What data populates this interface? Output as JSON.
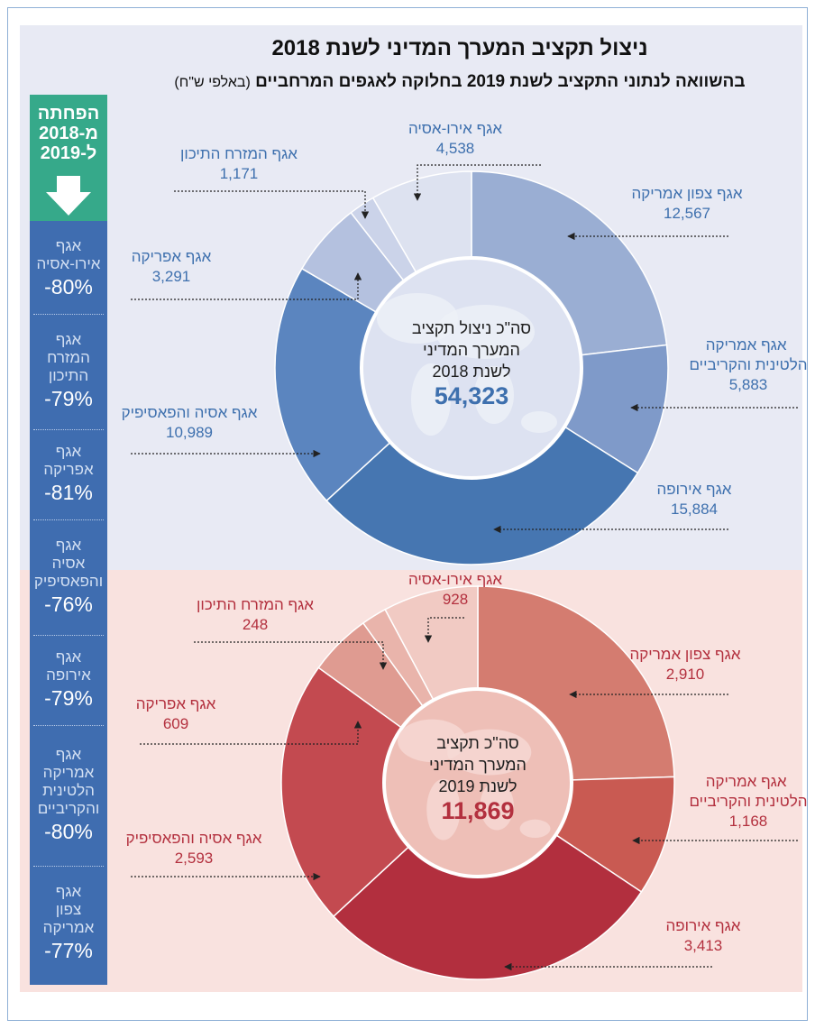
{
  "header": {
    "title": "ניצול תקציב המערך המדיני לשנת 2018",
    "subtitle": "בהשוואה לנתוני התקציב לשנת 2019 בחלוקה לאגפים המרחביים",
    "subtitle_note": "(באלפי ש\"ח)"
  },
  "sidebar": {
    "title": [
      "הפחתה",
      "מ-2018",
      "ל-2019"
    ],
    "items": [
      {
        "name": [
          "אגף",
          "אירו-אסיה"
        ],
        "change": "-80%"
      },
      {
        "name": [
          "אגף",
          "המזרח",
          "התיכון"
        ],
        "change": "-79%"
      },
      {
        "name": [
          "אגף",
          "אפריקה"
        ],
        "change": "-81%"
      },
      {
        "name": [
          "אגף",
          "אסיה",
          "והפאסיפיק"
        ],
        "change": "-76%"
      },
      {
        "name": [
          "אגף",
          "אירופה"
        ],
        "change": "-79%"
      },
      {
        "name": [
          "אגף",
          "אמריקה",
          "הלטינית",
          "והקריביים"
        ],
        "change": "-80%"
      },
      {
        "name": [
          "אגף",
          "צפון",
          "אמריקה"
        ],
        "change": "-77%"
      }
    ]
  },
  "chart_data": [
    {
      "type": "pie",
      "categories": [
        "אגף צפון אמריקה",
        "אגף אמריקה הלטינית והקריביים",
        "אגף אירופה",
        "אגף אסיה והפאסיפיק",
        "אגף אפריקה",
        "אגף המזרח התיכון",
        "אגף אירו-אסיה"
      ],
      "values": [
        12567,
        5883,
        15884,
        10989,
        3291,
        1171,
        4538
      ],
      "value_labels": [
        "12,567",
        "5,883",
        "15,884",
        "10,989",
        "3,291",
        "1,171",
        "4,538"
      ],
      "colors": [
        "#9aaed3",
        "#7f9ac9",
        "#4676b1",
        "#5b85bf",
        "#b4c1df",
        "#cbd3e9",
        "#dde2f0"
      ],
      "text_color": "#3e70ae",
      "center_text": [
        "סה\"כ ניצול תקציב",
        "המערך המדיני",
        "לשנת 2018"
      ],
      "total": "54,323"
    },
    {
      "type": "pie",
      "categories": [
        "אגף צפון אמריקה",
        "אגף אמריקה הלטינית והקריביים",
        "אגף אירופה",
        "אגף אסיה והפאסיפיק",
        "אגף אפריקה",
        "אגף המזרח התיכון",
        "אגף אירו-אסיה"
      ],
      "values": [
        2910,
        1168,
        3413,
        2593,
        609,
        248,
        928
      ],
      "value_labels": [
        "2,910",
        "1,168",
        "3,413",
        "2,593",
        "609",
        "248",
        "928"
      ],
      "colors": [
        "#d47c70",
        "#c95a52",
        "#b22f3e",
        "#c34a50",
        "#df9b91",
        "#e9b4ab",
        "#f1cac3"
      ],
      "text_color": "#b3303e",
      "center_text": [
        "סה\"כ תקציב",
        "המערך המדיני",
        "לשנת 2019"
      ],
      "total": "11,869"
    }
  ]
}
